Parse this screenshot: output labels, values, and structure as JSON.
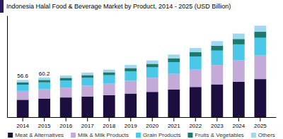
{
  "chart_data": {
    "type": "bar",
    "stacked": true,
    "title": "Indonesia Halal Food & Beverage Market by Product, 2014 - 2025 (USD Billion)",
    "categories": [
      "2014",
      "2015",
      "2016",
      "2017",
      "2018",
      "2019",
      "2020",
      "2021",
      "2022",
      "2023",
      "2024",
      "2025"
    ],
    "series": [
      {
        "name": "Meat & Alternatives",
        "color": "#1c0f3f",
        "values": [
          26.5,
          28.0,
          30.0,
          31.5,
          33.5,
          36.0,
          38.5,
          42.0,
          46.0,
          50.0,
          54.0,
          58.0
        ]
      },
      {
        "name": "Milk & Milk Products",
        "color": "#c4aad8",
        "values": [
          13.5,
          14.5,
          15.0,
          16.5,
          17.5,
          19.5,
          21.5,
          24.0,
          26.5,
          29.5,
          32.5,
          36.0
        ]
      },
      {
        "name": "Grain Products",
        "color": "#4bc8e8",
        "values": [
          9.5,
          10.5,
          11.0,
          12.0,
          13.0,
          14.5,
          16.0,
          18.0,
          20.0,
          22.0,
          24.5,
          27.0
        ]
      },
      {
        "name": "Fruits & Vegetables",
        "color": "#1a7a6e",
        "values": [
          3.6,
          3.7,
          3.9,
          4.1,
          4.4,
          4.8,
          5.3,
          5.8,
          6.5,
          7.3,
          8.2,
          9.2
        ]
      },
      {
        "name": "Others",
        "color": "#a0d8ef",
        "values": [
          3.5,
          3.5,
          3.6,
          3.9,
          4.1,
          4.7,
          5.2,
          5.7,
          6.5,
          7.2,
          8.3,
          9.3
        ]
      }
    ],
    "annotations": [
      {
        "category": "2014",
        "text": "56.6"
      },
      {
        "category": "2015",
        "text": "60.2"
      }
    ],
    "ylim": [
      0,
      155
    ],
    "tick_labels": "x",
    "grid": false,
    "legend": "bottom"
  }
}
